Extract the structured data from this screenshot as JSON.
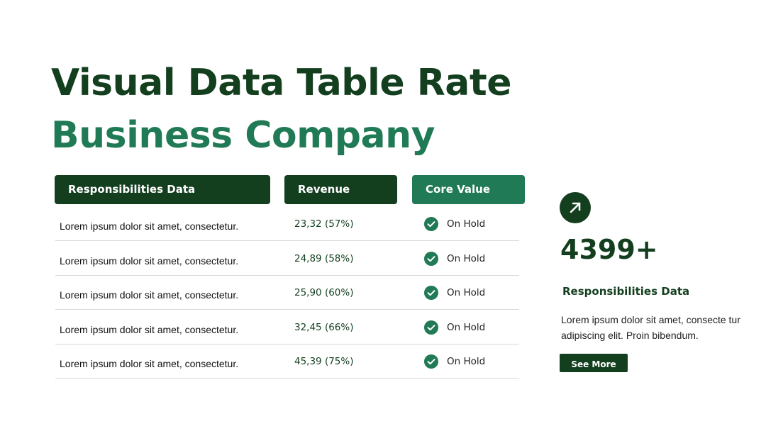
{
  "header": {
    "title_main": "Visual Data Table Rate",
    "title_accent": "Business Company"
  },
  "table": {
    "columns": [
      "Responsibilities Data",
      "Revenue",
      "Core Value"
    ],
    "rows": [
      [
        "Lorem ipsum dolor sit amet, consectetur.",
        "23,32 (57%)",
        "On Hold"
      ],
      [
        "Lorem ipsum dolor sit amet, consectetur.",
        "24,89 (58%)",
        "On Hold"
      ],
      [
        "Lorem ipsum dolor sit amet, consectetur.",
        "25,90 (60%)",
        "On Hold"
      ],
      [
        "Lorem ipsum dolor sit amet, consectetur.",
        "32,45 (66%)",
        "On Hold"
      ],
      [
        "Lorem ipsum dolor sit amet, consectetur.",
        "45,39 (75%)",
        "On Hold"
      ]
    ]
  },
  "side": {
    "stat": "4399+",
    "heading": "Responsibilities Data",
    "body": "Lorem ipsum dolor sit amet, consecte tur adipiscing elit. Proin bibendum.",
    "button": "See More"
  }
}
